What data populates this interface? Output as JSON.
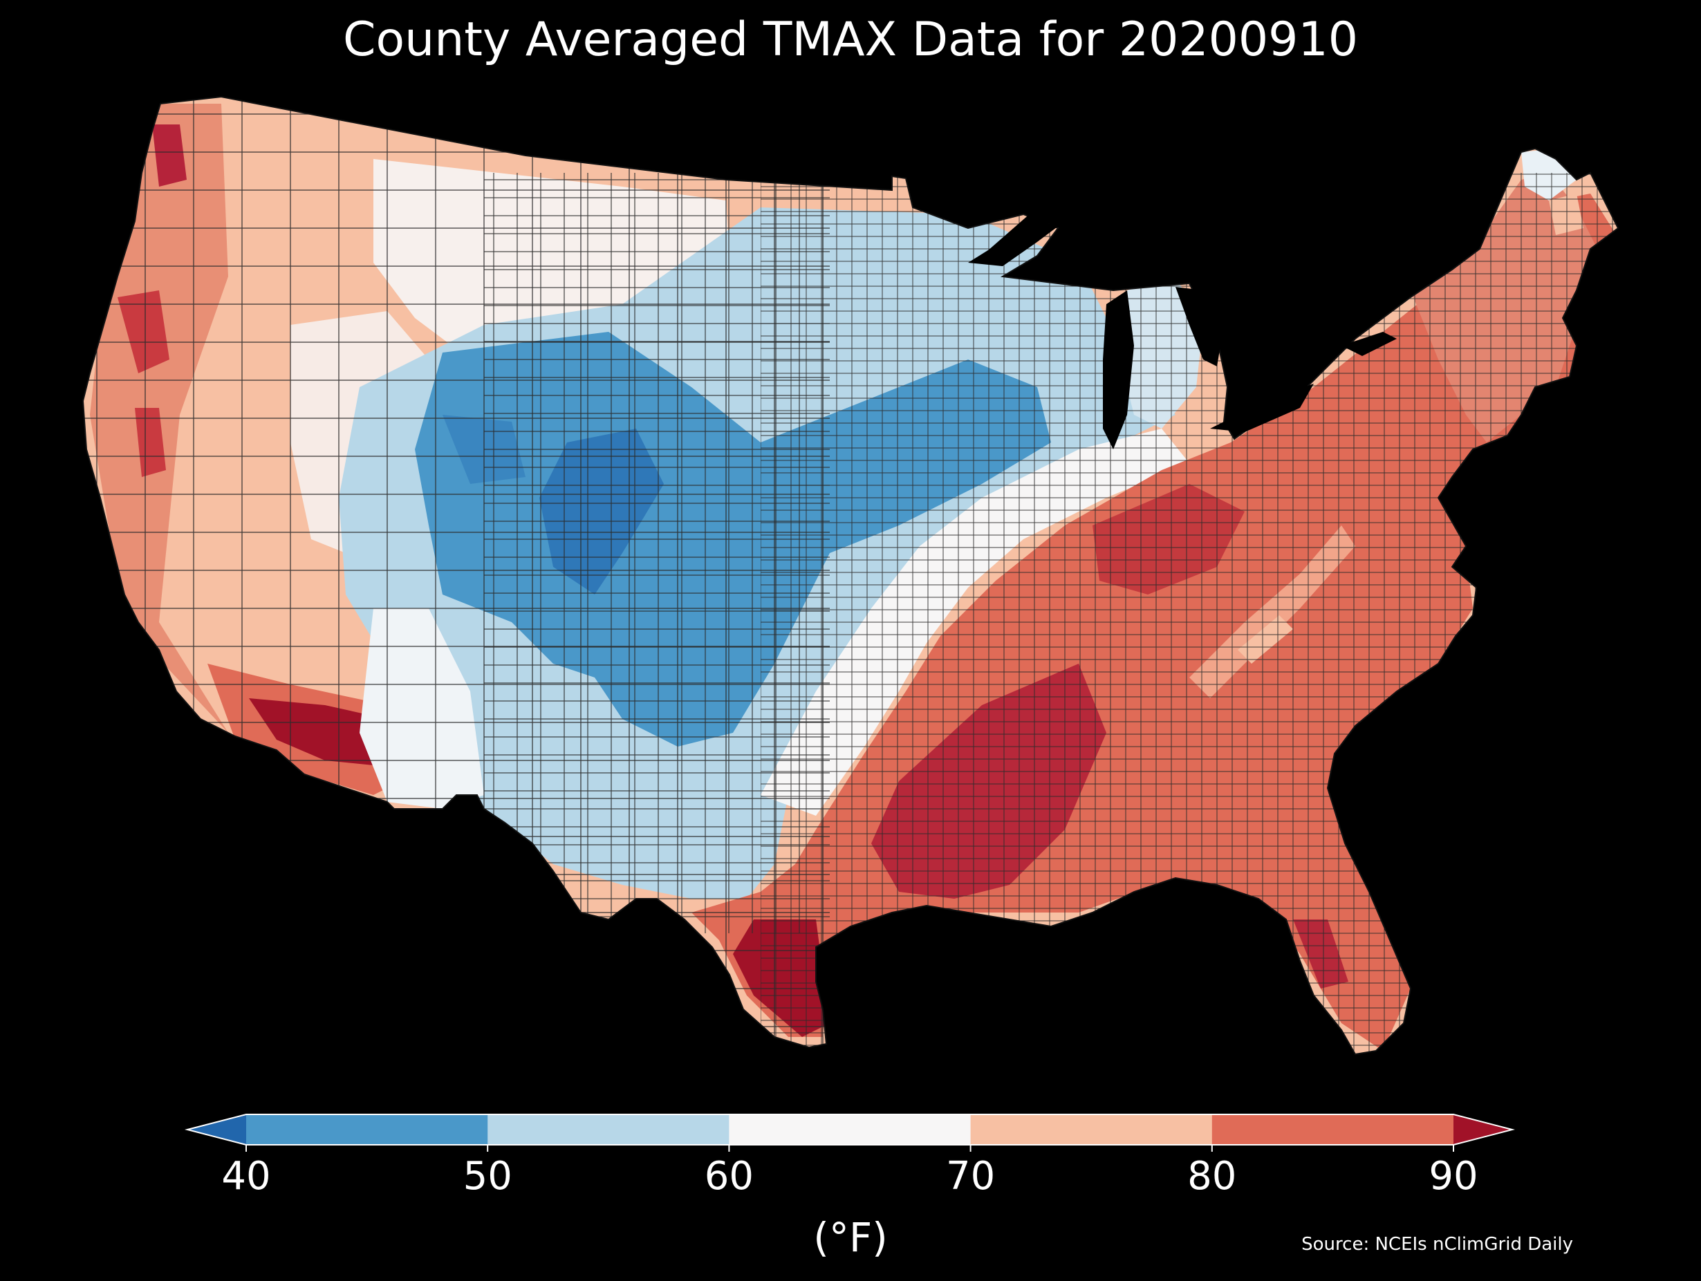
{
  "title": "County Averaged TMAX Data for 20200910",
  "colorbar": {
    "unit_label": "(°F)",
    "ticks": [
      "40",
      "50",
      "60",
      "70",
      "80",
      "90"
    ],
    "bins": [
      {
        "range": "<40",
        "color": "#2166ac"
      },
      {
        "range": "40-50",
        "color": "#4a98c9"
      },
      {
        "range": "50-60",
        "color": "#b7d7e8"
      },
      {
        "range": "60-70",
        "color": "#f7f6f6"
      },
      {
        "range": "70-80",
        "color": "#f7c0a3"
      },
      {
        "range": "80-90",
        "color": "#e06b57"
      },
      {
        "range": ">90",
        "color": "#a11228"
      }
    ]
  },
  "source": "Source: NCEIs nClimGrid Daily",
  "map": {
    "background": "#000000",
    "region": "Contiguous United States counties",
    "colors": {
      "very_cold": "#2166ac",
      "cold": "#4a98c9",
      "cool": "#b7d7e8",
      "mild": "#f7f6f6",
      "warm": "#f7c0a3",
      "hot": "#e06b57",
      "very_hot": "#a11228",
      "county_border": "#333333",
      "lakes": "#000000"
    }
  }
}
